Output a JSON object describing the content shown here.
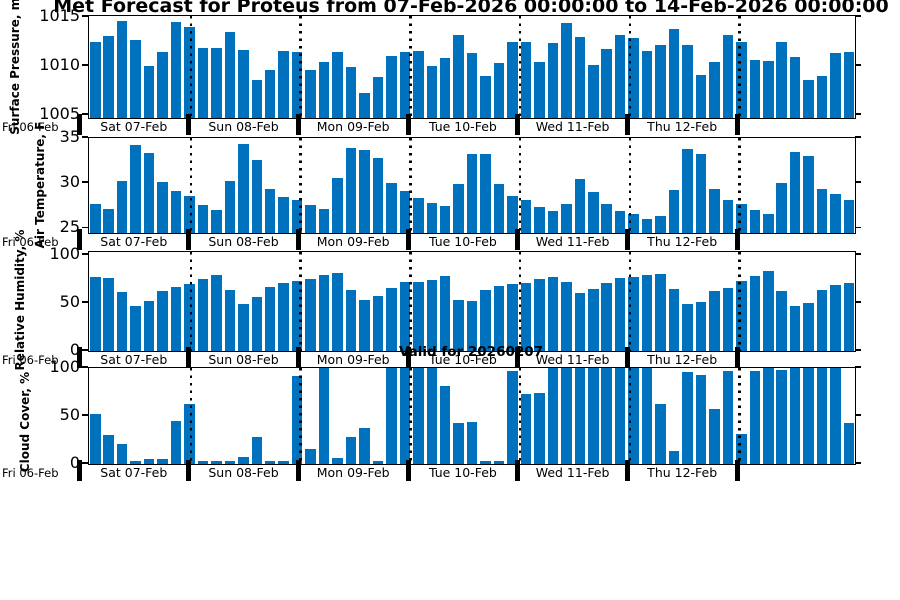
{
  "title": "Met Forecast for Proteus from 07-Feb-2026 00:00:00 to 14-Feb-2026 00:00:00",
  "annotation": "Valid for 20260207",
  "colors": {
    "bar": "#0072BD",
    "frame": "#000000",
    "text": "#000000"
  },
  "x_axis": {
    "left_edge_label": "Fri 06-Feb",
    "day_labels": [
      "Sat 07-Feb",
      "Sun 08-Feb",
      "Mon 09-Feb",
      "Tue 10-Feb",
      "Wed 11-Feb",
      "Thu 12-Feb"
    ],
    "step_hours": 3
  },
  "chart_data": [
    {
      "type": "bar",
      "key": "pressure",
      "ylabel": "Surface Pressure, mb",
      "yticks": [
        1005,
        1010,
        1015
      ],
      "ylim": [
        1004.7,
        1015.1
      ],
      "values": [
        1012.4,
        1013.1,
        1014.6,
        1012.7,
        1010.0,
        1011.4,
        1014.5,
        1014.0,
        1011.8,
        1011.8,
        1013.5,
        1011.6,
        1008.6,
        1009.6,
        1011.5,
        1011.4,
        1009.6,
        1010.4,
        1011.4,
        1009.9,
        1007.2,
        1008.9,
        1011.0,
        1011.4,
        1011.5,
        1010.0,
        1010.8,
        1013.2,
        1011.3,
        1009.0,
        1010.3,
        1012.5,
        1012.4,
        1010.4,
        1012.3,
        1014.4,
        1013.0,
        1010.1,
        1011.7,
        1013.2,
        1012.9,
        1011.5,
        1012.1,
        1013.8,
        1012.1,
        1009.1,
        1010.4,
        1013.2,
        1012.4,
        1010.6,
        1010.5,
        1012.4,
        1010.9,
        1008.6,
        1009.0,
        1011.3,
        1011.4
      ]
    },
    {
      "type": "bar",
      "key": "temperature",
      "ylabel": "Air Temperature, F",
      "yticks": [
        25,
        30,
        35
      ],
      "ylim": [
        24.5,
        35.0
      ],
      "values": [
        27.7,
        27.2,
        30.2,
        34.2,
        33.3,
        30.1,
        29.1,
        28.6,
        27.6,
        27.0,
        30.3,
        34.3,
        32.6,
        29.4,
        28.5,
        28.1,
        27.6,
        27.1,
        30.6,
        33.9,
        33.7,
        32.8,
        30.0,
        29.1,
        28.4,
        27.8,
        27.5,
        29.9,
        33.2,
        33.2,
        29.9,
        28.6,
        28.2,
        27.4,
        26.9,
        27.7,
        30.5,
        29.0,
        27.7,
        26.9,
        26.6,
        26.1,
        26.4,
        29.3,
        33.8,
        33.2,
        29.4,
        28.1,
        27.7,
        27.0,
        26.6,
        30.0,
        33.5,
        33.0,
        29.4,
        28.8,
        28.2
      ]
    },
    {
      "type": "bar",
      "key": "humidity",
      "ylabel": "Relative Humidity, %",
      "yticks": [
        0,
        50,
        100
      ],
      "ylim": [
        0,
        103
      ],
      "values": [
        77,
        76,
        61,
        47,
        52,
        62,
        67,
        70,
        75,
        79,
        63,
        49,
        56,
        67,
        71,
        73,
        75,
        79,
        81,
        64,
        53,
        57,
        66,
        72,
        72,
        74,
        78,
        53,
        52,
        63,
        68,
        70,
        71,
        75,
        77,
        72,
        60,
        65,
        71,
        76,
        77,
        79,
        80,
        65,
        49,
        51,
        62,
        66,
        73,
        78,
        83,
        62,
        47,
        50,
        64,
        69,
        71
      ]
    },
    {
      "type": "bar",
      "key": "cloud",
      "ylabel": "Cloud Cover, %",
      "yticks": [
        0,
        50,
        100
      ],
      "ylim": [
        0,
        100
      ],
      "values": [
        52,
        30,
        21,
        3,
        5,
        5,
        45,
        63,
        3,
        3,
        3,
        7,
        28,
        3,
        3,
        92,
        16,
        100,
        6,
        28,
        37,
        3,
        100,
        100,
        100,
        100,
        81,
        43,
        44,
        3,
        3,
        97,
        73,
        74,
        100,
        100,
        100,
        100,
        100,
        100,
        100,
        100,
        63,
        14,
        96,
        93,
        57,
        97,
        31,
        97,
        100,
        98,
        100,
        100,
        100,
        100,
        43
      ]
    }
  ]
}
